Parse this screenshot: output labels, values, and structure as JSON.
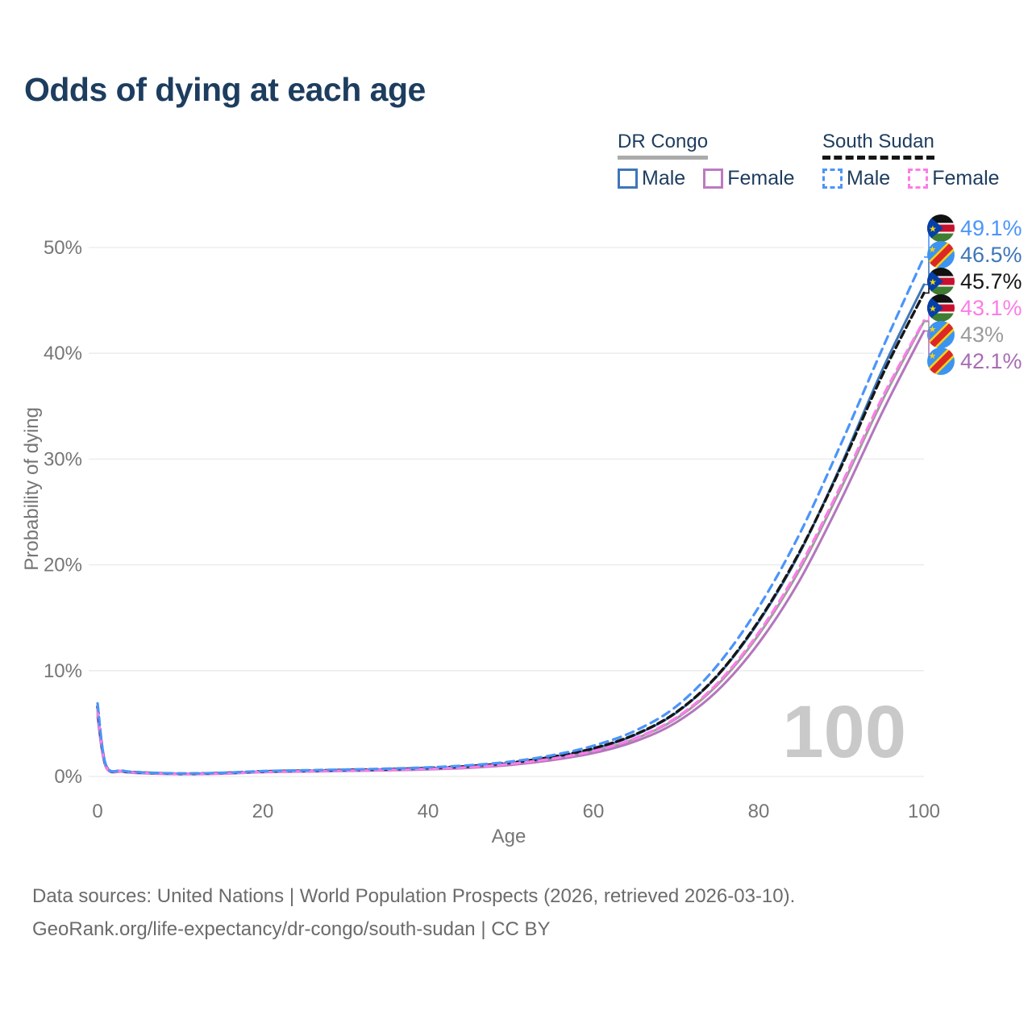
{
  "title": "Odds of dying at each age",
  "legend": {
    "groups": [
      {
        "label": "DR Congo",
        "line_style": "solid",
        "underline_color": "#ababab",
        "items": [
          {
            "label": "Male",
            "color": "#3e76b8"
          },
          {
            "label": "Female",
            "color": "#bd7ac1"
          }
        ]
      },
      {
        "label": "South Sudan",
        "line_style": "dashed",
        "underline_color": "#161616",
        "items": [
          {
            "label": "Male",
            "color": "#4b94fa"
          },
          {
            "label": "Female",
            "color": "#fb7de7"
          }
        ]
      }
    ]
  },
  "chart_data": {
    "type": "line",
    "title": "Odds of dying at each age",
    "xlabel": "Age",
    "ylabel": "Probability of dying",
    "xlim": [
      0,
      100
    ],
    "ylim": [
      0,
      50
    ],
    "grid": "horizontal",
    "watermark": "100",
    "x_ticks": [
      0,
      20,
      40,
      60,
      80,
      100
    ],
    "y_ticks": [
      {
        "value": 0,
        "label": "0%"
      },
      {
        "value": 10,
        "label": "10%"
      },
      {
        "value": 20,
        "label": "20%"
      },
      {
        "value": 30,
        "label": "30%"
      },
      {
        "value": 40,
        "label": "40%"
      },
      {
        "value": 50,
        "label": "50%"
      }
    ],
    "x": [
      0,
      1,
      3,
      5,
      10,
      15,
      20,
      25,
      30,
      35,
      40,
      45,
      50,
      55,
      60,
      65,
      70,
      75,
      80,
      85,
      90,
      95,
      100
    ],
    "series": [
      {
        "key": "drc-both",
        "name": "DR Congo Both sexes",
        "color": "#9b9b9b",
        "dash": null,
        "width": 3,
        "flag": "dr-congo",
        "end_label": "43%",
        "label_color": "#9b9b9b",
        "values": [
          5.9,
          0.95,
          0.47,
          0.34,
          0.23,
          0.28,
          0.43,
          0.49,
          0.55,
          0.61,
          0.71,
          0.87,
          1.16,
          1.65,
          2.35,
          3.55,
          5.45,
          8.65,
          13.4,
          19.6,
          27.3,
          35.6,
          43.0
        ]
      },
      {
        "key": "drc-female",
        "name": "DR Congo Female",
        "color": "#b475bd",
        "dash": null,
        "width": 3,
        "flag": "dr-congo",
        "end_label": "42.1%",
        "label_color": "#a86db3",
        "values": [
          5.6,
          0.9,
          0.44,
          0.31,
          0.21,
          0.26,
          0.4,
          0.46,
          0.51,
          0.57,
          0.66,
          0.81,
          1.08,
          1.54,
          2.2,
          3.3,
          5.1,
          8.1,
          12.6,
          18.6,
          26.2,
          34.5,
          42.1
        ]
      },
      {
        "key": "drc-male",
        "name": "DR Congo Male",
        "color": "#3e76b8",
        "dash": null,
        "width": 3,
        "flag": "dr-congo",
        "end_label": "46.5%",
        "label_color": "#3e76b8",
        "values": [
          6.2,
          1.0,
          0.5,
          0.36,
          0.25,
          0.31,
          0.46,
          0.53,
          0.59,
          0.66,
          0.77,
          0.95,
          1.27,
          1.8,
          2.6,
          3.9,
          6.0,
          9.5,
          14.6,
          21.2,
          29.5,
          38.5,
          46.5
        ]
      },
      {
        "key": "ss-both",
        "name": "South Sudan Both sexes",
        "color": "#161616",
        "dash": "9 5",
        "width": 3.4,
        "flag": "south-sudan",
        "end_label": "45.7%",
        "label_color": "#161616",
        "values": [
          6.6,
          1.05,
          0.52,
          0.38,
          0.26,
          0.32,
          0.47,
          0.54,
          0.61,
          0.68,
          0.79,
          0.97,
          1.3,
          1.85,
          2.65,
          3.95,
          6.05,
          9.55,
          14.7,
          21.3,
          29.3,
          38.0,
          45.7
        ]
      },
      {
        "key": "ss-female",
        "name": "South Sudan Female",
        "color": "#fb7de7",
        "dash": "10 7",
        "width": 3.2,
        "flag": "south-sudan",
        "end_label": "43.1%",
        "label_color": "#fb7de7",
        "values": [
          6.3,
          1.0,
          0.5,
          0.36,
          0.24,
          0.29,
          0.43,
          0.49,
          0.55,
          0.62,
          0.72,
          0.88,
          1.18,
          1.68,
          2.4,
          3.6,
          5.55,
          8.8,
          13.6,
          19.9,
          27.6,
          35.9,
          43.1
        ]
      },
      {
        "key": "ss-male",
        "name": "South Sudan Male",
        "color": "#4b94fa",
        "dash": "10 7",
        "width": 3.2,
        "flag": "south-sudan",
        "end_label": "49.1%",
        "label_color": "#4b94fa",
        "values": [
          6.9,
          1.1,
          0.55,
          0.4,
          0.28,
          0.34,
          0.5,
          0.58,
          0.65,
          0.73,
          0.85,
          1.05,
          1.4,
          2.0,
          2.9,
          4.3,
          6.6,
          10.5,
          16.0,
          23.0,
          31.5,
          40.5,
          49.1
        ]
      }
    ]
  },
  "footer": {
    "line1": "Data sources: United Nations | World Population Prospects (2026, retrieved 2026-03-10).",
    "line2": "GeoRank.org/life-expectancy/dr-congo/south-sudan | CC BY"
  }
}
